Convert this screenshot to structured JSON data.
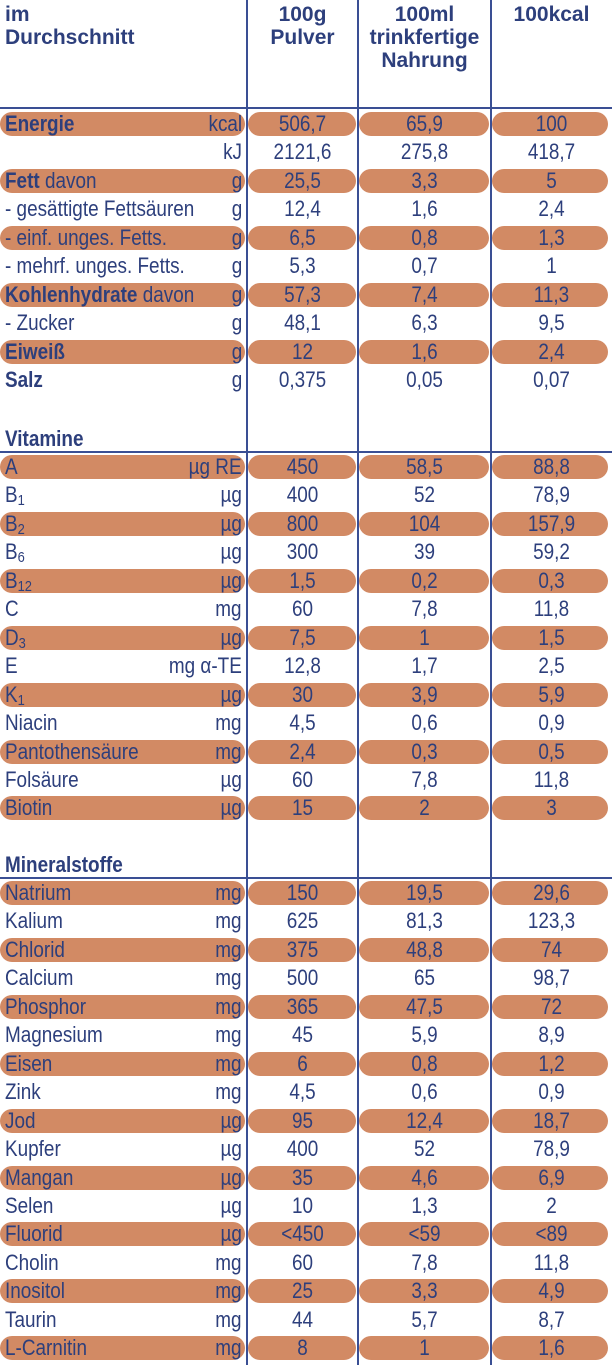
{
  "header": {
    "col0": [
      "im",
      "Durchschnitt"
    ],
    "col1": [
      "100g",
      "Pulver"
    ],
    "col2": [
      "100ml",
      "trinkfertige",
      "Nahrung"
    ],
    "col3": [
      "100kcal"
    ]
  },
  "colors": {
    "text": "#2d3f7c",
    "bar": "#d28a64",
    "rule": "#3a4f94"
  },
  "sections": {
    "vitamine": "Vitamine",
    "mineralstoffe": "Mineralstoffe"
  },
  "rows": [
    {
      "label": "Energie",
      "suffix": "",
      "unit": "kcal",
      "v1": "506,7",
      "v2": "65,9",
      "v3": "100",
      "shade": true,
      "bold": true
    },
    {
      "label": "",
      "suffix": "",
      "unit": "kJ",
      "v1": "2121,6",
      "v2": "275,8",
      "v3": "418,7",
      "shade": false,
      "bold": false
    },
    {
      "label": "Fett",
      "suffix": " davon",
      "unit": "g",
      "v1": "25,5",
      "v2": "3,3",
      "v3": "5",
      "shade": true,
      "bold": true
    },
    {
      "label": "- gesättigte Fettsäuren",
      "suffix": "",
      "unit": "g",
      "v1": "12,4",
      "v2": "1,6",
      "v3": "2,4",
      "shade": false,
      "bold": false
    },
    {
      "label": "- einf. unges. Fetts.",
      "suffix": "",
      "unit": "g",
      "v1": "6,5",
      "v2": "0,8",
      "v3": "1,3",
      "shade": true,
      "bold": false
    },
    {
      "label": "- mehrf. unges. Fetts.",
      "suffix": "",
      "unit": "g",
      "v1": "5,3",
      "v2": "0,7",
      "v3": "1",
      "shade": false,
      "bold": false
    },
    {
      "label": "Kohlenhydrate",
      "suffix": " davon",
      "unit": "g",
      "v1": "57,3",
      "v2": "7,4",
      "v3": "11,3",
      "shade": true,
      "bold": true
    },
    {
      "label": "- Zucker",
      "suffix": "",
      "unit": "g",
      "v1": "48,1",
      "v2": "6,3",
      "v3": "9,5",
      "shade": false,
      "bold": false
    },
    {
      "label": "Eiweiß",
      "suffix": "",
      "unit": "g",
      "v1": "12",
      "v2": "1,6",
      "v3": "2,4",
      "shade": true,
      "bold": true
    },
    {
      "label": "Salz",
      "suffix": "",
      "unit": "g",
      "v1": "0,375",
      "v2": "0,05",
      "v3": "0,07",
      "shade": false,
      "bold": true
    }
  ],
  "vitamins": [
    {
      "label": "A",
      "sub": "",
      "unit": "µg RE",
      "v1": "450",
      "v2": "58,5",
      "v3": "88,8",
      "shade": true
    },
    {
      "label": "B",
      "sub": "1",
      "unit": "µg",
      "v1": "400",
      "v2": "52",
      "v3": "78,9",
      "shade": false
    },
    {
      "label": "B",
      "sub": "2",
      "unit": "µg",
      "v1": "800",
      "v2": "104",
      "v3": "157,9",
      "shade": true
    },
    {
      "label": "B",
      "sub": "6",
      "unit": "µg",
      "v1": "300",
      "v2": "39",
      "v3": "59,2",
      "shade": false
    },
    {
      "label": "B",
      "sub": "12",
      "unit": "µg",
      "v1": "1,5",
      "v2": "0,2",
      "v3": "0,3",
      "shade": true
    },
    {
      "label": "C",
      "sub": "",
      "unit": "mg",
      "v1": "60",
      "v2": "7,8",
      "v3": "11,8",
      "shade": false
    },
    {
      "label": "D",
      "sub": "3",
      "unit": "µg",
      "v1": "7,5",
      "v2": "1",
      "v3": "1,5",
      "shade": true
    },
    {
      "label": "E",
      "sub": "",
      "unit": "mg α-TE",
      "v1": "12,8",
      "v2": "1,7",
      "v3": "2,5",
      "shade": false
    },
    {
      "label": "K",
      "sub": "1",
      "unit": "µg",
      "v1": "30",
      "v2": "3,9",
      "v3": "5,9",
      "shade": true
    },
    {
      "label": "Niacin",
      "sub": "",
      "unit": "mg",
      "v1": "4,5",
      "v2": "0,6",
      "v3": "0,9",
      "shade": false
    },
    {
      "label": "Pantothensäure",
      "sub": "",
      "unit": "mg",
      "v1": "2,4",
      "v2": "0,3",
      "v3": "0,5",
      "shade": true
    },
    {
      "label": "Folsäure",
      "sub": "",
      "unit": "µg",
      "v1": "60",
      "v2": "7,8",
      "v3": "11,8",
      "shade": false
    },
    {
      "label": "Biotin",
      "sub": "",
      "unit": "µg",
      "v1": "15",
      "v2": "2",
      "v3": "3",
      "shade": true
    }
  ],
  "minerals": [
    {
      "label": "Natrium",
      "unit": "mg",
      "v1": "150",
      "v2": "19,5",
      "v3": "29,6",
      "shade": true
    },
    {
      "label": "Kalium",
      "unit": "mg",
      "v1": "625",
      "v2": "81,3",
      "v3": "123,3",
      "shade": false
    },
    {
      "label": "Chlorid",
      "unit": "mg",
      "v1": "375",
      "v2": "48,8",
      "v3": "74",
      "shade": true
    },
    {
      "label": "Calcium",
      "unit": "mg",
      "v1": "500",
      "v2": "65",
      "v3": "98,7",
      "shade": false
    },
    {
      "label": "Phosphor",
      "unit": "mg",
      "v1": "365",
      "v2": "47,5",
      "v3": "72",
      "shade": true
    },
    {
      "label": "Magnesium",
      "unit": "mg",
      "v1": "45",
      "v2": "5,9",
      "v3": "8,9",
      "shade": false
    },
    {
      "label": "Eisen",
      "unit": "mg",
      "v1": "6",
      "v2": "0,8",
      "v3": "1,2",
      "shade": true
    },
    {
      "label": "Zink",
      "unit": "mg",
      "v1": "4,5",
      "v2": "0,6",
      "v3": "0,9",
      "shade": false
    },
    {
      "label": "Jod",
      "unit": "µg",
      "v1": "95",
      "v2": "12,4",
      "v3": "18,7",
      "shade": true
    },
    {
      "label": "Kupfer",
      "unit": "µg",
      "v1": "400",
      "v2": "52",
      "v3": "78,9",
      "shade": false
    },
    {
      "label": "Mangan",
      "unit": "µg",
      "v1": "35",
      "v2": "4,6",
      "v3": "6,9",
      "shade": true
    },
    {
      "label": "Selen",
      "unit": "µg",
      "v1": "10",
      "v2": "1,3",
      "v3": "2",
      "shade": false
    },
    {
      "label": "Fluorid",
      "unit": "µg",
      "v1": "<450",
      "v2": "<59",
      "v3": "<89",
      "shade": true
    },
    {
      "label": "Cholin",
      "unit": "mg",
      "v1": "60",
      "v2": "7,8",
      "v3": "11,8",
      "shade": false
    },
    {
      "label": "Inositol",
      "unit": "mg",
      "v1": "25",
      "v2": "3,3",
      "v3": "4,9",
      "shade": true
    },
    {
      "label": "Taurin",
      "unit": "mg",
      "v1": "44",
      "v2": "5,7",
      "v3": "8,7",
      "shade": false
    },
    {
      "label": "L-Carnitin",
      "unit": "mg",
      "v1": "8",
      "v2": "1",
      "v3": "1,6",
      "shade": true
    }
  ]
}
